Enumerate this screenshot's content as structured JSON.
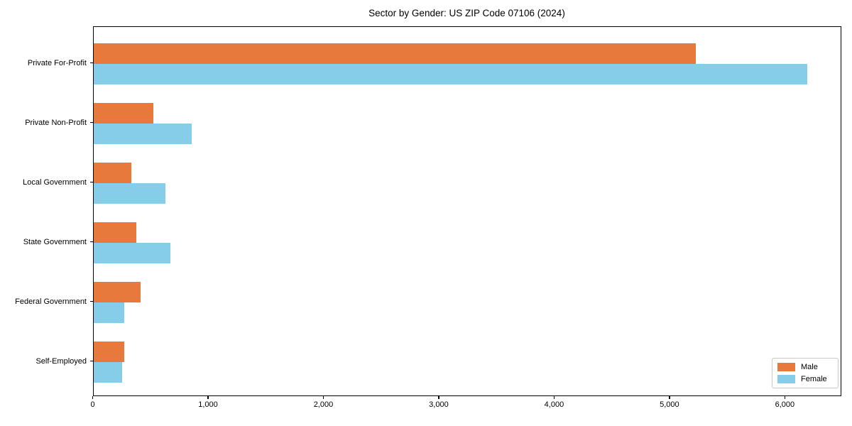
{
  "chart_data": {
    "type": "bar",
    "orientation": "horizontal",
    "title": "Sector by Gender: US ZIP Code 07106 (2024)",
    "categories": [
      "Private For-Profit",
      "Private Non-Profit",
      "Local Government",
      "State Government",
      "Federal Government",
      "Self-Employed"
    ],
    "series": [
      {
        "name": "Male",
        "color": "#e8793c",
        "values": [
          5220,
          520,
          330,
          375,
          410,
          270
        ]
      },
      {
        "name": "Female",
        "color": "#85cde8",
        "values": [
          6190,
          850,
          625,
          665,
          270,
          250
        ]
      }
    ],
    "xlabel": "",
    "ylabel": "",
    "xlim": [
      0,
      6490
    ],
    "x_ticks": [
      {
        "value": 0,
        "label": "0"
      },
      {
        "value": 1000,
        "label": "1,000"
      },
      {
        "value": 2000,
        "label": "2,000"
      },
      {
        "value": 3000,
        "label": "3,000"
      },
      {
        "value": 4000,
        "label": "4,000"
      },
      {
        "value": 5000,
        "label": "5,000"
      },
      {
        "value": 6000,
        "label": "6,000"
      }
    ],
    "grid": false,
    "legend": {
      "position": "lower right",
      "entries": [
        "Male",
        "Female"
      ]
    }
  }
}
